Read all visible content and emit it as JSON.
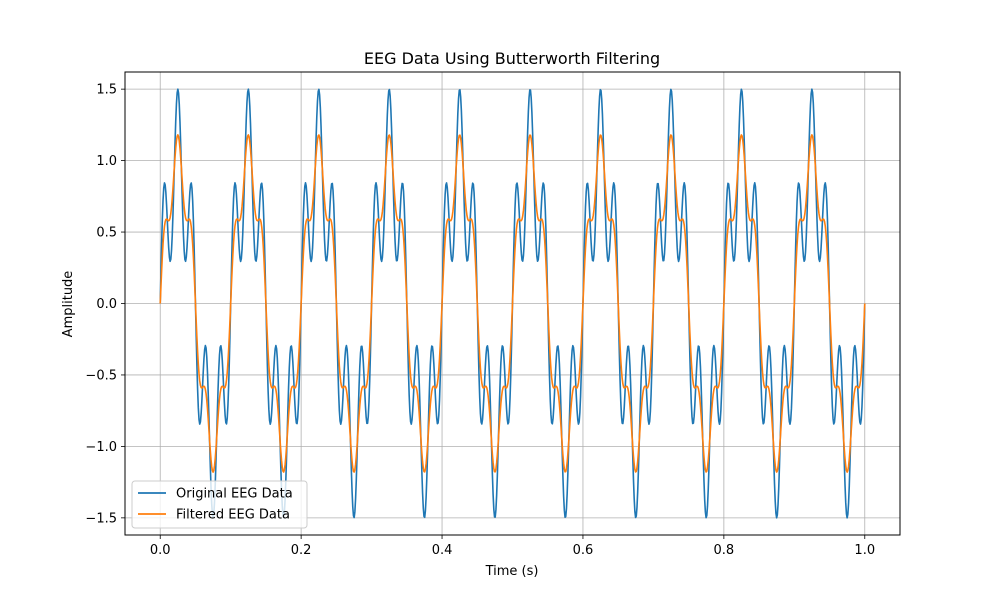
{
  "chart_data": {
    "type": "line",
    "title": "EEG Data Using Butterworth Filtering",
    "xlabel": "Time (s)",
    "ylabel": "Amplitude",
    "xlim": [
      -0.05,
      1.05
    ],
    "ylim": [
      -1.62,
      1.62
    ],
    "xticks": [
      0.0,
      0.2,
      0.4,
      0.6,
      0.8,
      1.0
    ],
    "xtick_labels": [
      "0.0",
      "0.2",
      "0.4",
      "0.6",
      "0.8",
      "1.0"
    ],
    "yticks": [
      1.5,
      1.0,
      0.5,
      0.0,
      -0.5,
      -1.0,
      -1.5
    ],
    "ytick_labels": [
      "1.5",
      "1.0",
      "0.5",
      "0.0",
      "−0.5",
      "−1.0",
      "−1.5"
    ],
    "grid": true,
    "legend_position": "lower-left",
    "series": [
      {
        "name": "Original EEG Data",
        "color": "#1f77b4",
        "signal": {
          "components": [
            {
              "frequency_hz": 10,
              "amplitude": 1.0
            },
            {
              "frequency_hz": 50,
              "amplitude": 0.5
            }
          ],
          "t_start": 0.0,
          "t_end": 1.0,
          "samples": 1000
        }
      },
      {
        "name": "Filtered EEG Data",
        "color": "#ff7f0e",
        "signal": {
          "components": [
            {
              "frequency_hz": 10,
              "amplitude": 1.0
            },
            {
              "frequency_hz": 50,
              "amplitude": 0.18
            }
          ],
          "t_start": 0.0,
          "t_end": 1.0,
          "samples": 1000
        }
      }
    ]
  }
}
